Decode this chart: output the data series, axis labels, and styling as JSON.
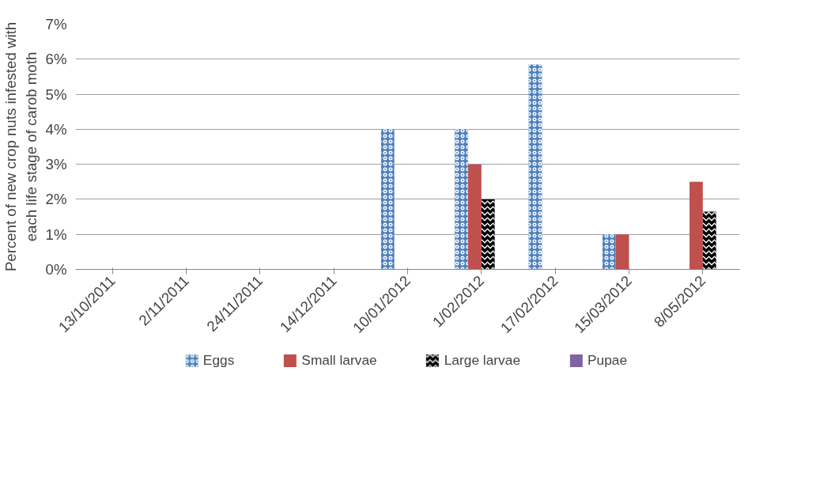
{
  "chart_data": {
    "type": "bar",
    "ylabel": "Percent of new crop nuts infested with each life stage of carob moth",
    "categories": [
      "13/10/2011",
      "2/11/2011",
      "24/11/2011",
      "14/12/2011",
      "10/01/2012",
      "1/02/2012",
      "17/02/2012",
      "15/03/2012",
      "8/05/2012"
    ],
    "series": [
      {
        "name": "Eggs",
        "color": "#4f81bd",
        "values": [
          0,
          0,
          0,
          0,
          4,
          4,
          5.85,
          1,
          0
        ]
      },
      {
        "name": "Small larvae",
        "color": "#c0504d",
        "values": [
          0,
          0,
          0,
          0,
          0,
          3,
          0,
          1,
          2.5
        ]
      },
      {
        "name": "Large larvae",
        "color": "#000000",
        "values": [
          0,
          0,
          0,
          0,
          0,
          2,
          0,
          0,
          1.65
        ]
      },
      {
        "name": "Pupae",
        "color": "#8064a2",
        "values": [
          0,
          0,
          0,
          0,
          0,
          0,
          0,
          0,
          0
        ]
      }
    ],
    "ylim": [
      0,
      7
    ],
    "yticks": [
      {
        "value": 0,
        "label": "0%"
      },
      {
        "value": 1,
        "label": "1%"
      },
      {
        "value": 2,
        "label": "2%"
      },
      {
        "value": 3,
        "label": "3%"
      },
      {
        "value": 4,
        "label": "4%"
      },
      {
        "value": 5,
        "label": "5%"
      },
      {
        "value": 6,
        "label": "6%"
      },
      {
        "value": 7,
        "label": "7%"
      }
    ],
    "grid": "y",
    "legend": "bottom"
  }
}
